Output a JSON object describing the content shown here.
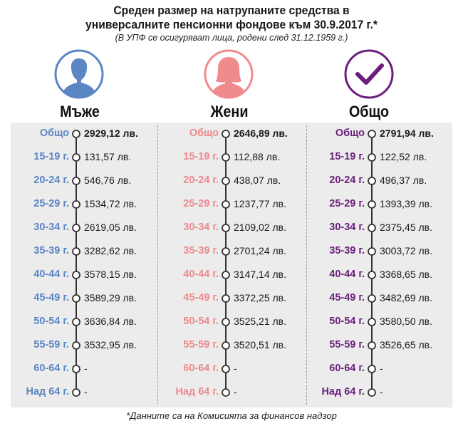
{
  "title_line1": "Среден размер на натрупаните средства в",
  "title_line2": "универсалните пенсионни фондове към 30.9.2017 г.*",
  "subtitle": "(В УПФ се осигуряват лица, родени след 31.12.1959 г.)",
  "footnote": "*Данните са на Комисията за финансов надзор",
  "colors": {
    "men": "#5b86c4",
    "women": "#ef8a8d",
    "all": "#6b1f7d",
    "timeline": "#333333"
  },
  "icons": {
    "men": "male-avatar-icon",
    "women": "female-avatar-icon",
    "all": "checkmark-circle-icon"
  },
  "chart_data": {
    "type": "table",
    "title": "Среден размер на натрупаните средства в универсалните пенсионни фондове към 30.9.2017 г.*",
    "categories": [
      "Общо",
      "15-19 г.",
      "20-24 г.",
      "25-29 г.",
      "30-34 г.",
      "35-39 г.",
      "40-44 г.",
      "45-49 г.",
      "50-54 г.",
      "55-59 г.",
      "60-64 г.",
      "Над 64 г."
    ],
    "series": [
      {
        "name": "Мъже",
        "values": [
          "2929,12 лв.",
          "131,57 лв.",
          "546,76 лв.",
          "1534,72 лв.",
          "2619,05 лв.",
          "3282,62 лв.",
          "3578,15 лв.",
          "3589,29 лв.",
          "3636,84 лв.",
          "3532,95 лв.",
          "-",
          "-"
        ]
      },
      {
        "name": "Жени",
        "values": [
          "2646,89 лв.",
          "112,88 лв.",
          "438,07 лв.",
          "1237,77 лв.",
          "2109,02 лв.",
          "2701,24 лв.",
          "3147,14 лв.",
          "3372,25 лв.",
          "3525,21 лв.",
          "3520,51 лв.",
          "-",
          "-"
        ]
      },
      {
        "name": "Общо",
        "values": [
          "2791,94 лв.",
          "122,52 лв.",
          "496,37 лв.",
          "1393,39 лв.",
          "2375,45 лв.",
          "3003,72 лв.",
          "3368,65 лв.",
          "3482,69 лв.",
          "3580,50 лв.",
          "3526,65 лв.",
          "-",
          "-"
        ]
      }
    ]
  }
}
